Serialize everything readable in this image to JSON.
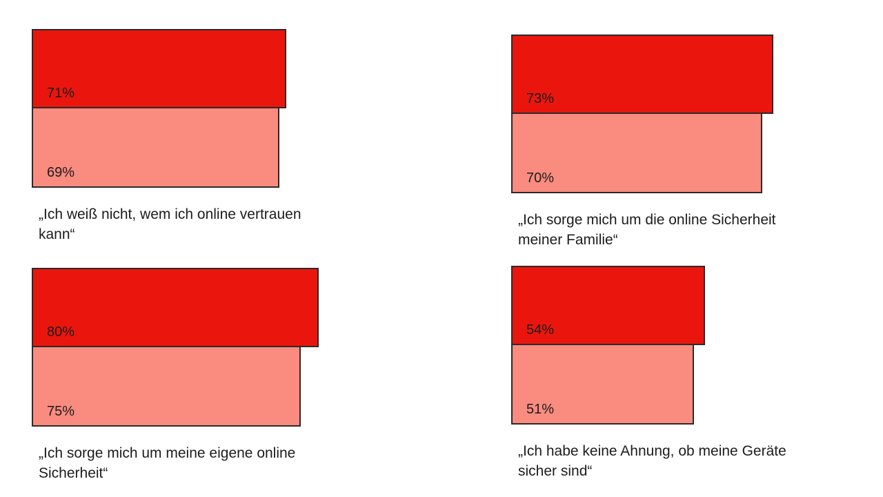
{
  "colors": {
    "primary": "#ea160e",
    "secondary": "#fa8b7f"
  },
  "chart_data": [
    {
      "type": "bar",
      "orientation": "horizontal",
      "caption": "„Ich weiß nicht, wem ich online vertrauen kann“",
      "values": [
        71,
        69
      ],
      "labels": [
        "71%",
        "69%"
      ]
    },
    {
      "type": "bar",
      "orientation": "horizontal",
      "caption": "„Ich sorge mich um die online Sicherheit meiner Familie“",
      "values": [
        73,
        70
      ],
      "labels": [
        "73%",
        "70%"
      ]
    },
    {
      "type": "bar",
      "orientation": "horizontal",
      "caption": "„Ich sorge mich um meine eigene online Sicherheit“",
      "values": [
        80,
        75
      ],
      "labels": [
        "80%",
        "75%"
      ]
    },
    {
      "type": "bar",
      "orientation": "horizontal",
      "caption": "„Ich habe keine Ahnung, ob meine Geräte sicher sind“",
      "values": [
        54,
        51
      ],
      "labels": [
        "54%",
        "51%"
      ]
    }
  ]
}
